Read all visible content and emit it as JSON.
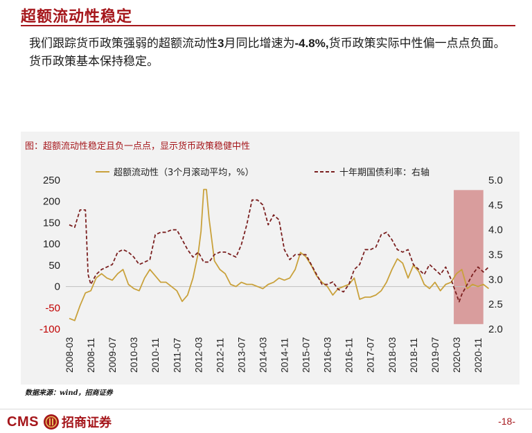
{
  "page": {
    "title": "超额流动性稳定",
    "body_before": "我们跟踪货币政策强弱的超额流动性",
    "body_bold_1": "3",
    "body_middle": "月同比增速为",
    "body_bold_2": "-4.8%,",
    "body_after": "货币政策实际中性偏一点点负面。货币政策基本保持稳定。",
    "source": "数据来源：wind，招商证券",
    "page_number": "-18-",
    "logo_text": "CMS",
    "logo_cn": "招商证券"
  },
  "colors": {
    "accent": "#a5161b",
    "series_excess": "#c9a13b",
    "series_bond": "#7a1f1f",
    "shade": "#d08080",
    "panel": "#f2f2f2"
  },
  "chart_data": {
    "type": "line",
    "caption": "图：超额流动性稳定且负一点点，显示货币政策稳健中性",
    "x_ticks": [
      "2008-03",
      "2008-11",
      "2009-07",
      "2010-03",
      "2010-11",
      "2011-07",
      "2012-03",
      "2012-11",
      "2013-07",
      "2014-03",
      "2014-11",
      "2015-07",
      "2016-03",
      "2016-11",
      "2017-07",
      "2018-03",
      "2018-11",
      "2019-07",
      "2020-03",
      "2020-11"
    ],
    "y_left": {
      "ticks": [
        250,
        200,
        150,
        100,
        50,
        0,
        -50,
        -100
      ],
      "ylim": [
        -100,
        250
      ]
    },
    "y_right": {
      "ticks": [
        "5.0",
        "4.5",
        "4.0",
        "3.5",
        "3.0",
        "2.5",
        "2.0"
      ],
      "ylim": [
        2.0,
        5.0
      ]
    },
    "shaded_region": {
      "start": "2020-02",
      "end": "2021-01"
    },
    "series": [
      {
        "name": "超额流动性（3个月滚动平均，%）",
        "axis": "left",
        "style": "solid",
        "points": [
          [
            "2008-03",
            -75
          ],
          [
            "2008-05",
            -80
          ],
          [
            "2008-07",
            -45
          ],
          [
            "2008-09",
            -15
          ],
          [
            "2008-11",
            -10
          ],
          [
            "2009-01",
            20
          ],
          [
            "2009-03",
            30
          ],
          [
            "2009-05",
            20
          ],
          [
            "2009-07",
            15
          ],
          [
            "2009-09",
            30
          ],
          [
            "2009-11",
            40
          ],
          [
            "2010-01",
            5
          ],
          [
            "2010-03",
            -5
          ],
          [
            "2010-05",
            -10
          ],
          [
            "2010-07",
            20
          ],
          [
            "2010-09",
            40
          ],
          [
            "2010-11",
            25
          ],
          [
            "2011-01",
            10
          ],
          [
            "2011-03",
            10
          ],
          [
            "2011-05",
            0
          ],
          [
            "2011-07",
            -10
          ],
          [
            "2011-09",
            -35
          ],
          [
            "2011-11",
            -20
          ],
          [
            "2012-01",
            20
          ],
          [
            "2012-03",
            80
          ],
          [
            "2012-04",
            130
          ],
          [
            "2012-05",
            228
          ],
          [
            "2012-06",
            228
          ],
          [
            "2012-07",
            160
          ],
          [
            "2012-09",
            60
          ],
          [
            "2012-11",
            40
          ],
          [
            "2013-01",
            30
          ],
          [
            "2013-03",
            5
          ],
          [
            "2013-05",
            0
          ],
          [
            "2013-07",
            10
          ],
          [
            "2013-09",
            5
          ],
          [
            "2013-11",
            5
          ],
          [
            "2014-01",
            0
          ],
          [
            "2014-03",
            -5
          ],
          [
            "2014-05",
            5
          ],
          [
            "2014-07",
            10
          ],
          [
            "2014-09",
            20
          ],
          [
            "2014-11",
            15
          ],
          [
            "2015-01",
            20
          ],
          [
            "2015-03",
            40
          ],
          [
            "2015-05",
            80
          ],
          [
            "2015-07",
            70
          ],
          [
            "2015-09",
            50
          ],
          [
            "2015-11",
            25
          ],
          [
            "2016-01",
            10
          ],
          [
            "2016-03",
            0
          ],
          [
            "2016-05",
            -20
          ],
          [
            "2016-07",
            -5
          ],
          [
            "2016-09",
            0
          ],
          [
            "2016-11",
            5
          ],
          [
            "2017-01",
            20
          ],
          [
            "2017-03",
            -30
          ],
          [
            "2017-05",
            -25
          ],
          [
            "2017-07",
            -25
          ],
          [
            "2017-09",
            -20
          ],
          [
            "2017-11",
            -10
          ],
          [
            "2018-01",
            10
          ],
          [
            "2018-03",
            40
          ],
          [
            "2018-05",
            65
          ],
          [
            "2018-07",
            55
          ],
          [
            "2018-09",
            20
          ],
          [
            "2018-11",
            50
          ],
          [
            "2019-01",
            35
          ],
          [
            "2019-03",
            5
          ],
          [
            "2019-05",
            -5
          ],
          [
            "2019-07",
            10
          ],
          [
            "2019-09",
            -10
          ],
          [
            "2019-11",
            5
          ],
          [
            "2020-01",
            10
          ],
          [
            "2020-03",
            30
          ],
          [
            "2020-05",
            40
          ],
          [
            "2020-07",
            -5
          ],
          [
            "2020-09",
            5
          ],
          [
            "2020-11",
            0
          ],
          [
            "2021-01",
            5
          ],
          [
            "2021-03",
            -5
          ]
        ]
      },
      {
        "name": "十年期国债利率：右轴",
        "axis": "right",
        "style": "dashed",
        "points": [
          [
            "2008-03",
            4.1
          ],
          [
            "2008-05",
            4.05
          ],
          [
            "2008-07",
            4.4
          ],
          [
            "2008-09",
            4.4
          ],
          [
            "2008-10",
            3.1
          ],
          [
            "2008-11",
            2.9
          ],
          [
            "2009-01",
            3.1
          ],
          [
            "2009-03",
            3.2
          ],
          [
            "2009-05",
            3.25
          ],
          [
            "2009-07",
            3.3
          ],
          [
            "2009-09",
            3.55
          ],
          [
            "2009-11",
            3.6
          ],
          [
            "2010-01",
            3.55
          ],
          [
            "2010-03",
            3.45
          ],
          [
            "2010-05",
            3.3
          ],
          [
            "2010-07",
            3.35
          ],
          [
            "2010-09",
            3.4
          ],
          [
            "2010-11",
            3.9
          ],
          [
            "2011-01",
            3.95
          ],
          [
            "2011-03",
            3.95
          ],
          [
            "2011-05",
            4.0
          ],
          [
            "2011-07",
            4.0
          ],
          [
            "2011-09",
            3.8
          ],
          [
            "2011-11",
            3.6
          ],
          [
            "2012-01",
            3.45
          ],
          [
            "2012-03",
            3.55
          ],
          [
            "2012-05",
            3.35
          ],
          [
            "2012-07",
            3.35
          ],
          [
            "2012-09",
            3.5
          ],
          [
            "2012-11",
            3.55
          ],
          [
            "2013-01",
            3.55
          ],
          [
            "2013-03",
            3.5
          ],
          [
            "2013-05",
            3.45
          ],
          [
            "2013-07",
            3.7
          ],
          [
            "2013-09",
            4.1
          ],
          [
            "2013-11",
            4.6
          ],
          [
            "2014-01",
            4.6
          ],
          [
            "2014-03",
            4.5
          ],
          [
            "2014-05",
            4.1
          ],
          [
            "2014-07",
            4.3
          ],
          [
            "2014-09",
            4.2
          ],
          [
            "2014-11",
            3.6
          ],
          [
            "2015-01",
            3.4
          ],
          [
            "2015-03",
            3.5
          ],
          [
            "2015-05",
            3.5
          ],
          [
            "2015-07",
            3.5
          ],
          [
            "2015-09",
            3.3
          ],
          [
            "2015-11",
            3.1
          ],
          [
            "2016-01",
            2.9
          ],
          [
            "2016-03",
            2.9
          ],
          [
            "2016-05",
            2.95
          ],
          [
            "2016-07",
            2.8
          ],
          [
            "2016-09",
            2.75
          ],
          [
            "2016-11",
            2.9
          ],
          [
            "2017-01",
            3.2
          ],
          [
            "2017-03",
            3.3
          ],
          [
            "2017-05",
            3.6
          ],
          [
            "2017-07",
            3.6
          ],
          [
            "2017-09",
            3.65
          ],
          [
            "2017-11",
            3.9
          ],
          [
            "2018-01",
            3.95
          ],
          [
            "2018-03",
            3.8
          ],
          [
            "2018-05",
            3.6
          ],
          [
            "2018-07",
            3.55
          ],
          [
            "2018-09",
            3.6
          ],
          [
            "2018-11",
            3.3
          ],
          [
            "2019-01",
            3.2
          ],
          [
            "2019-03",
            3.1
          ],
          [
            "2019-05",
            3.3
          ],
          [
            "2019-07",
            3.2
          ],
          [
            "2019-09",
            3.1
          ],
          [
            "2019-11",
            3.25
          ],
          [
            "2020-01",
            3.0
          ],
          [
            "2020-03",
            2.7
          ],
          [
            "2020-04",
            2.55
          ],
          [
            "2020-05",
            2.7
          ],
          [
            "2020-07",
            2.9
          ],
          [
            "2020-09",
            3.1
          ],
          [
            "2020-11",
            3.25
          ],
          [
            "2021-01",
            3.15
          ],
          [
            "2021-03",
            3.25
          ]
        ]
      }
    ]
  }
}
